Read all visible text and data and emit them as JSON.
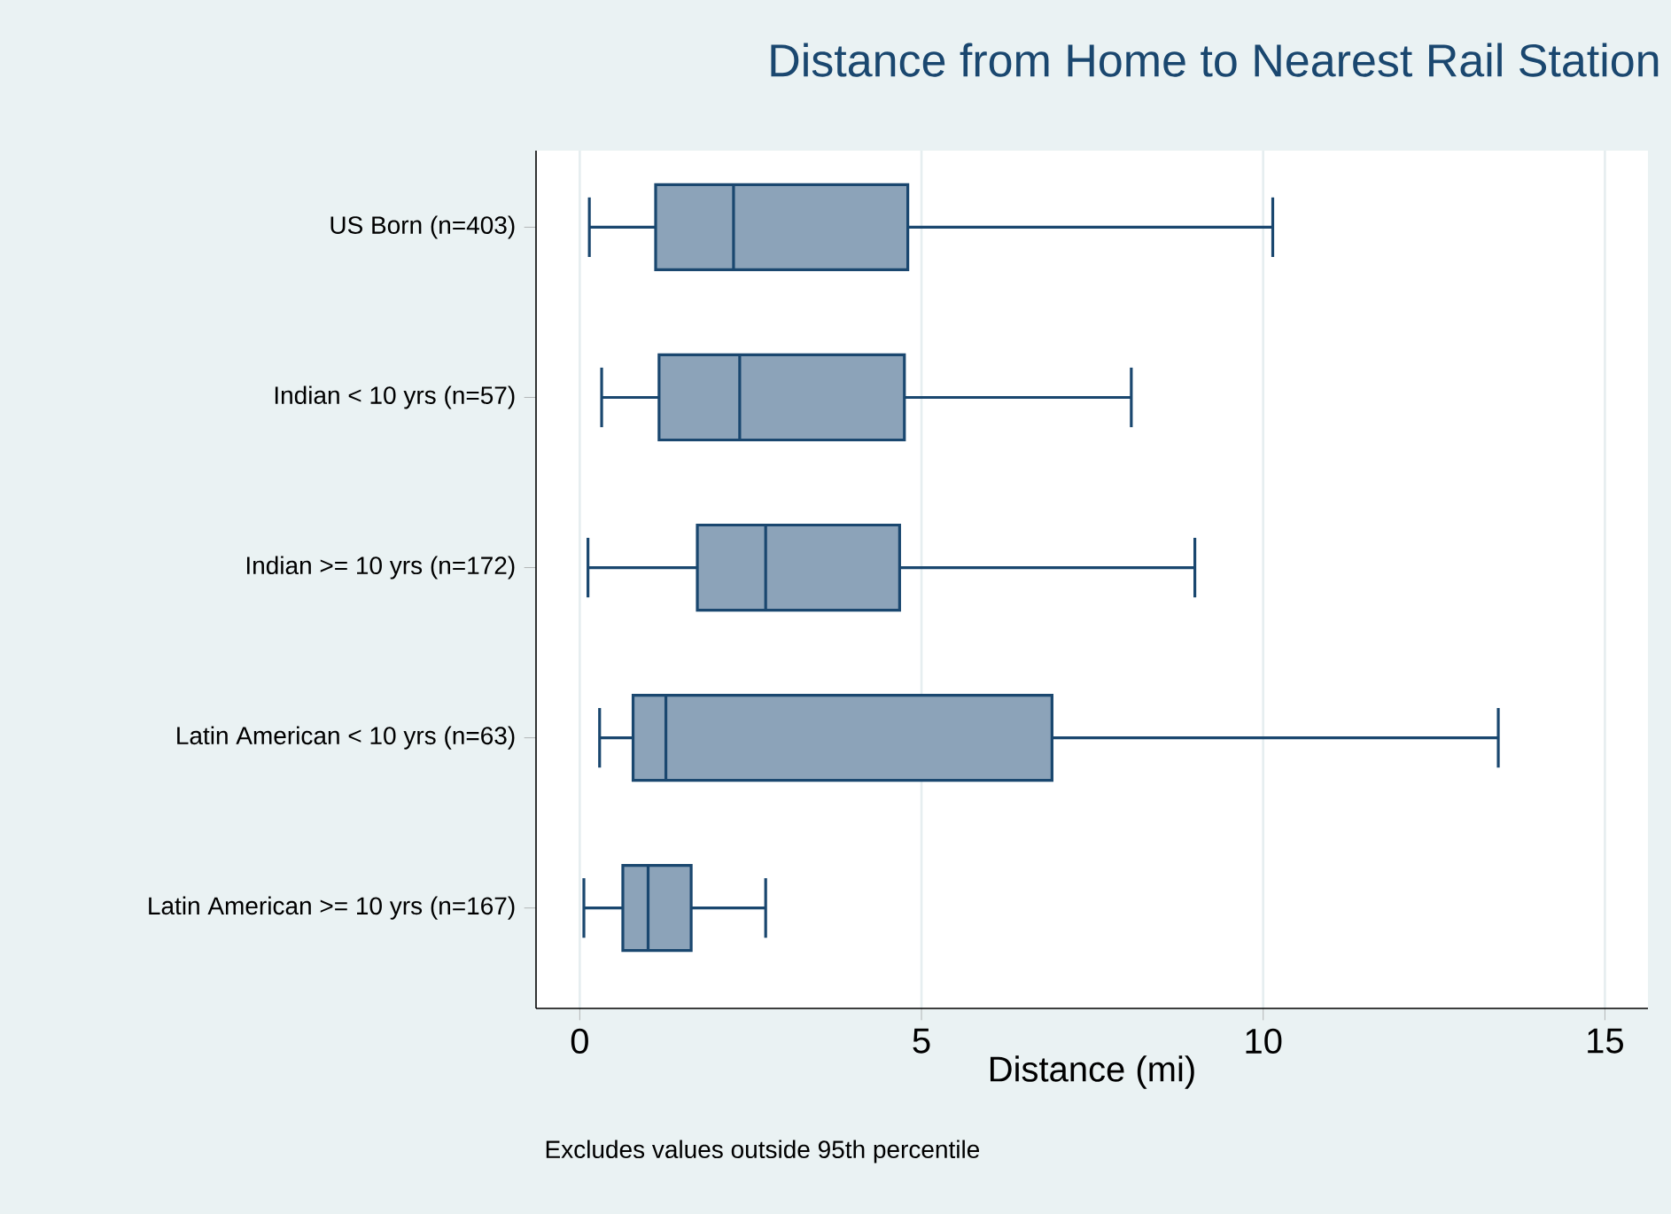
{
  "chart_data": {
    "type": "box",
    "orientation": "horizontal",
    "title": "Distance from Home to Nearest Rail Station",
    "xlabel": "Distance (mi)",
    "categories": [
      "US Born (n=403)",
      "Indian < 10 yrs (n=57)",
      "Indian >= 10 yrs (n=172)",
      "Latin American < 10 yrs (n=63)",
      "Latin American >= 10 yrs (n=167)"
    ],
    "boxes": [
      {
        "low": 0.14,
        "q1": 1.11,
        "median": 2.25,
        "q3": 4.8,
        "high": 10.14
      },
      {
        "low": 0.32,
        "q1": 1.16,
        "median": 2.34,
        "q3": 4.75,
        "high": 8.07
      },
      {
        "low": 0.12,
        "q1": 1.72,
        "median": 2.72,
        "q3": 4.68,
        "high": 9.0
      },
      {
        "low": 0.29,
        "q1": 0.78,
        "median": 1.26,
        "q3": 6.91,
        "high": 13.44
      },
      {
        "low": 0.06,
        "q1": 0.63,
        "median": 1.0,
        "q3": 1.63,
        "high": 2.72
      }
    ],
    "color": "#8ca3b9",
    "xlim": [
      -0.64,
      15.63
    ],
    "xticks": [
      0,
      5,
      10,
      15
    ],
    "grid": "x",
    "annotations": [
      "Excludes values outside 95th percentile"
    ]
  }
}
